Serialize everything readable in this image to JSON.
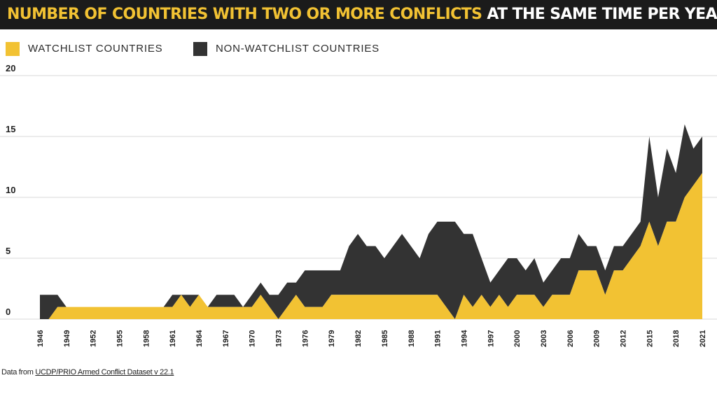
{
  "title": {
    "highlight": "NUMBER OF COUNTRIES WITH TWO OR MORE CONFLICTS",
    "rest": " AT THE SAME TIME PER YEAR"
  },
  "colors": {
    "watchlist": "#f2c233",
    "non_watchlist": "#333333",
    "title_bg": "#1b1b1b",
    "highlight": "#f2c233"
  },
  "legend": {
    "watchlist": "WATCHLIST COUNTRIES",
    "non_watchlist": "NON-WATCHLIST COUNTRIES"
  },
  "source": {
    "prefix": "Data from ",
    "link": "UCDP/PRIO Armed Conflict Dataset v 22.1"
  },
  "chart_data": {
    "type": "area",
    "stacked": true,
    "title": "NUMBER OF COUNTRIES WITH TWO OR MORE CONFLICTS AT THE SAME TIME PER YEAR",
    "xlabel": "",
    "ylabel": "",
    "ylim": [
      0,
      20
    ],
    "yticks": [
      0,
      5,
      10,
      15,
      20
    ],
    "xlim": [
      1946,
      2021
    ],
    "xticks": [
      1946,
      1949,
      1952,
      1955,
      1958,
      1961,
      1964,
      1967,
      1970,
      1973,
      1976,
      1979,
      1982,
      1985,
      1988,
      1991,
      1994,
      1997,
      2000,
      2003,
      2006,
      2009,
      2012,
      2015,
      2018,
      2021
    ],
    "grid": true,
    "legend_position": "top-left",
    "x": [
      1946,
      1947,
      1948,
      1949,
      1950,
      1951,
      1952,
      1953,
      1954,
      1955,
      1956,
      1957,
      1958,
      1959,
      1960,
      1961,
      1962,
      1963,
      1964,
      1965,
      1966,
      1967,
      1968,
      1969,
      1970,
      1971,
      1972,
      1973,
      1974,
      1975,
      1976,
      1977,
      1978,
      1979,
      1980,
      1981,
      1982,
      1983,
      1984,
      1985,
      1986,
      1987,
      1988,
      1989,
      1990,
      1991,
      1992,
      1993,
      1994,
      1995,
      1996,
      1997,
      1998,
      1999,
      2000,
      2001,
      2002,
      2003,
      2004,
      2005,
      2006,
      2007,
      2008,
      2009,
      2010,
      2011,
      2012,
      2013,
      2014,
      2015,
      2016,
      2017,
      2018,
      2019,
      2020,
      2021
    ],
    "series": [
      {
        "name": "WATCHLIST COUNTRIES",
        "values": [
          0,
          0,
          1,
          1,
          1,
          1,
          1,
          1,
          1,
          1,
          1,
          1,
          1,
          1,
          1,
          1,
          2,
          1,
          2,
          1,
          1,
          1,
          1,
          1,
          1,
          2,
          1,
          0,
          1,
          2,
          1,
          1,
          1,
          2,
          2,
          2,
          2,
          2,
          2,
          2,
          2,
          2,
          2,
          2,
          2,
          2,
          1,
          0,
          2,
          1,
          2,
          1,
          2,
          1,
          2,
          2,
          2,
          1,
          2,
          2,
          2,
          4,
          4,
          4,
          2,
          4,
          4,
          5,
          6,
          8,
          6,
          8,
          8,
          10,
          11,
          12
        ]
      },
      {
        "name": "NON-WATCHLIST COUNTRIES",
        "values": [
          2,
          2,
          1,
          0,
          0,
          0,
          0,
          0,
          0,
          0,
          0,
          0,
          0,
          0,
          0,
          1,
          0,
          1,
          0,
          0,
          1,
          1,
          1,
          0,
          1,
          1,
          1,
          2,
          2,
          1,
          3,
          3,
          3,
          2,
          2,
          4,
          5,
          4,
          4,
          3,
          4,
          5,
          4,
          3,
          5,
          6,
          7,
          8,
          5,
          6,
          3,
          2,
          2,
          4,
          3,
          2,
          3,
          2,
          2,
          3,
          3,
          3,
          2,
          2,
          2,
          2,
          2,
          2,
          2,
          7,
          4,
          6,
          4,
          6,
          3,
          3
        ]
      }
    ]
  }
}
